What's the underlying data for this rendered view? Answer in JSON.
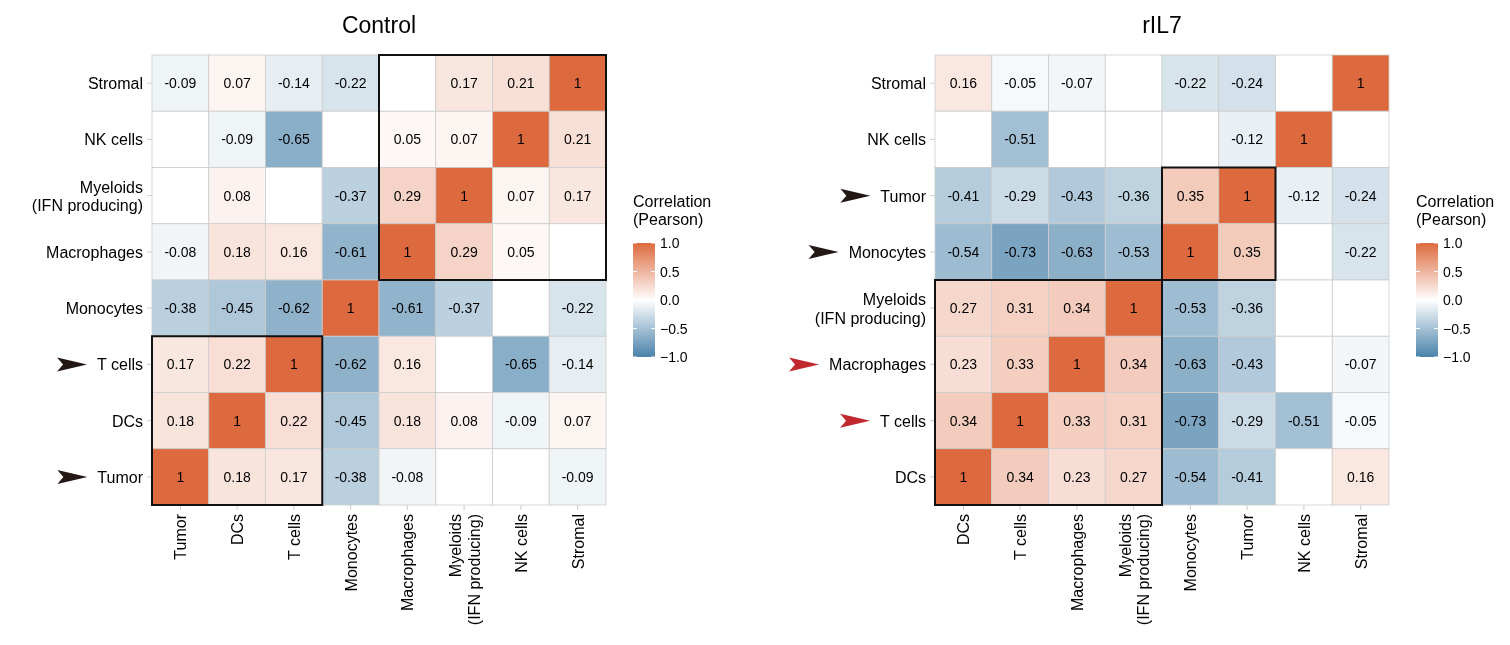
{
  "chart_data": [
    {
      "type": "heatmap",
      "title": "Control",
      "clabel": "Correlation\n(Pearson)",
      "data_labels": true,
      "categories": [
        "Tumor",
        "DCs",
        "T cells",
        "Monocytes",
        "Macrophages",
        "Myeloids\n(IFN producing)",
        "NK cells",
        "Stromal"
      ],
      "y_categories": [
        "Stromal",
        "NK cells",
        "Myeloids\n(IFN producing)",
        "Macrophages",
        "Monocytes",
        "T cells",
        "DCs",
        "Tumor"
      ],
      "cells": [
        [
          -0.09,
          0.07,
          -0.14,
          -0.22,
          null,
          0.17,
          0.21,
          1
        ],
        [
          null,
          -0.09,
          -0.65,
          null,
          0.05,
          0.07,
          1,
          0.21
        ],
        [
          null,
          0.08,
          null,
          -0.37,
          0.29,
          1,
          0.07,
          0.17
        ],
        [
          -0.08,
          0.18,
          0.16,
          -0.61,
          1,
          0.29,
          0.05,
          null
        ],
        [
          -0.38,
          -0.45,
          -0.62,
          1,
          -0.61,
          -0.37,
          null,
          -0.22
        ],
        [
          0.17,
          0.22,
          1,
          -0.62,
          0.16,
          null,
          -0.65,
          -0.14
        ],
        [
          0.18,
          1,
          0.22,
          -0.45,
          0.18,
          0.08,
          -0.09,
          0.07
        ],
        [
          1,
          0.18,
          0.17,
          -0.38,
          -0.08,
          null,
          null,
          -0.09
        ]
      ],
      "clim": [
        -1,
        1
      ],
      "cticks": [
        {
          "value": 1,
          "label": "1.0"
        },
        {
          "value": 0.5,
          "label": "0.5"
        },
        {
          "value": 0,
          "label": "0.0"
        },
        {
          "value": -0.5,
          "label": "−0.5"
        },
        {
          "value": -1,
          "label": "−1.0"
        }
      ]
    },
    {
      "type": "heatmap",
      "title": "rIL7",
      "clabel": "Correlation\n(Pearson)",
      "data_labels": true,
      "categories": [
        "DCs",
        "T cells",
        "Macrophages",
        "Myeloids\n(IFN producing)",
        "Monocytes",
        "Tumor",
        "NK cells",
        "Stromal"
      ],
      "y_categories": [
        "Stromal",
        "NK cells",
        "Tumor",
        "Monocytes",
        "Myeloids\n(IFN producing)",
        "Macrophages",
        "T cells",
        "DCs"
      ],
      "cells": [
        [
          0.16,
          -0.05,
          -0.07,
          null,
          -0.22,
          -0.24,
          null,
          1
        ],
        [
          null,
          -0.51,
          null,
          null,
          null,
          -0.12,
          1,
          null
        ],
        [
          -0.41,
          -0.29,
          -0.43,
          -0.36,
          0.35,
          1,
          -0.12,
          -0.24
        ],
        [
          -0.54,
          -0.73,
          -0.63,
          -0.53,
          1,
          0.35,
          null,
          -0.22
        ],
        [
          0.27,
          0.31,
          0.34,
          1,
          -0.53,
          -0.36,
          null,
          null
        ],
        [
          0.23,
          0.33,
          1,
          0.34,
          -0.63,
          -0.43,
          null,
          -0.07
        ],
        [
          0.34,
          1,
          0.33,
          0.31,
          -0.73,
          -0.29,
          -0.51,
          -0.05
        ],
        [
          1,
          0.34,
          0.23,
          0.27,
          -0.54,
          -0.41,
          null,
          0.16
        ]
      ],
      "clim": [
        -1,
        1
      ],
      "cticks": [
        {
          "value": 1,
          "label": "1.0"
        },
        {
          "value": 0.5,
          "label": "0.5"
        },
        {
          "value": 0,
          "label": "0.0"
        },
        {
          "value": -0.5,
          "label": "−0.5"
        },
        {
          "value": -1,
          "label": "−1.0"
        }
      ]
    }
  ]
}
